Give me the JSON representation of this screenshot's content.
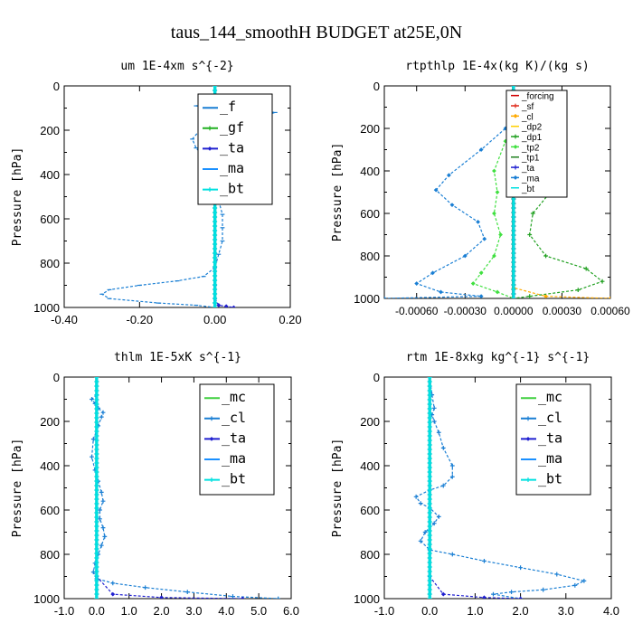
{
  "figure_title": "taus_144_smoothH  BUDGET at25E,0N",
  "chart_data": [
    {
      "type": "line",
      "title": "um  1E-4xm s^{-2}",
      "ylabel": "Pressure [hPa]",
      "xlim": [
        -0.4,
        0.2
      ],
      "ylim": [
        1000,
        0
      ],
      "xticks": [
        "-0.40",
        "-0.20",
        "0.00",
        "0.20"
      ],
      "yticks": [
        "0",
        "200",
        "400",
        "600",
        "800",
        "1000"
      ],
      "legend": [
        "_f",
        "_gf",
        "_ta",
        "_ma",
        "_bt"
      ],
      "series": [
        {
          "name": "_f",
          "color": "#1a7fd4",
          "x": [
            0.0,
            -0.03,
            -0.05,
            0.0,
            0.1,
            0.16,
            0.12,
            0.02,
            -0.04,
            -0.06,
            -0.05,
            -0.03,
            -0.02,
            0.0,
            0.01,
            0.01,
            0.02,
            0.02,
            0.02,
            0.01,
            0.0,
            -0.03,
            -0.1,
            -0.2,
            -0.28,
            -0.3,
            -0.28,
            -0.15,
            -0.05,
            0.0
          ],
          "y": [
            70,
            80,
            90,
            100,
            110,
            120,
            140,
            170,
            200,
            240,
            280,
            320,
            360,
            400,
            460,
            520,
            580,
            640,
            700,
            760,
            820,
            860,
            880,
            900,
            920,
            940,
            960,
            980,
            990,
            1000
          ]
        },
        {
          "name": "_gf",
          "color": "#20b020",
          "x": [
            0.0,
            0.0,
            0.0,
            0.0,
            0.0,
            0.0,
            0.0,
            0.0,
            0.0,
            0.0,
            0.0
          ],
          "y": [
            0,
            100,
            200,
            300,
            400,
            500,
            600,
            700,
            800,
            900,
            1000
          ]
        },
        {
          "name": "_ta",
          "color": "#2020d0",
          "x": [
            0.0,
            0.0,
            0.01,
            0.03,
            0.05
          ],
          "y": [
            900,
            960,
            990,
            995,
            1000
          ]
        },
        {
          "name": "_ma",
          "color": "#1a90ff",
          "x": [
            0.0,
            0.0
          ],
          "y": [
            0,
            1000
          ]
        },
        {
          "name": "_bt",
          "color": "#00e0e0",
          "x": [
            0.0,
            0.0,
            0.0,
            0.0,
            0.0,
            0.0
          ],
          "y": [
            0,
            200,
            400,
            600,
            800,
            1000
          ]
        }
      ]
    },
    {
      "type": "line",
      "title": "rtpthlp  1E-4x(kg K)/(kg s)",
      "ylabel": "Pressure [hPa]",
      "xlim": [
        -0.0008,
        0.0006
      ],
      "ylim": [
        1000,
        0
      ],
      "xticks": [
        "-0.00060",
        "-0.00030",
        "0.00000",
        "0.00030",
        "0.00060"
      ],
      "yticks": [
        "0",
        "200",
        "400",
        "600",
        "800",
        "1000"
      ],
      "legend": [
        "_forcing",
        "_sf",
        "_cl",
        "_dp2",
        "_dp1",
        "_tp2",
        "_tp1",
        "_ta",
        "_ma",
        "_bt"
      ],
      "series": [
        {
          "name": "_forcing",
          "color": "#d00000",
          "x": [
            0.0,
            0.0,
            0.0,
            0.0,
            0.0,
            0.0
          ],
          "y": [
            0,
            200,
            400,
            600,
            800,
            1000
          ]
        },
        {
          "name": "_sf",
          "color": "#e03020",
          "x": [
            0.0,
            0.0,
            0.0,
            0.0
          ],
          "y": [
            0,
            400,
            800,
            1000
          ]
        },
        {
          "name": "_cl",
          "color": "#ffaa00",
          "x": [
            0.0,
            0.0,
            0.0002,
            0.0006
          ],
          "y": [
            0,
            950,
            990,
            1000
          ]
        },
        {
          "name": "_dp2",
          "color": "#ffd000",
          "x": [
            0.0,
            0.0,
            0.0
          ],
          "y": [
            0,
            500,
            1000
          ]
        },
        {
          "name": "_dp1",
          "color": "#20a020",
          "x": [
            0.0,
            5e-05,
            0.00018,
            0.00028,
            0.00025,
            0.00012,
            0.0001,
            0.0002,
            0.00045,
            0.00055,
            0.0004,
            0.0001,
            0.0
          ],
          "y": [
            180,
            220,
            300,
            400,
            480,
            600,
            700,
            800,
            860,
            920,
            960,
            990,
            1000
          ]
        },
        {
          "name": "_tp2",
          "color": "#40e040",
          "x": [
            0.0,
            -5e-05,
            -0.00012,
            -0.0001,
            -0.00012,
            -8e-05,
            -0.00012,
            -0.0002,
            -0.00025,
            -0.0001,
            0.0
          ],
          "y": [
            200,
            260,
            400,
            500,
            600,
            700,
            800,
            880,
            930,
            970,
            1000
          ]
        },
        {
          "name": "_tp1",
          "color": "#208020",
          "x": [
            0.0,
            0.0,
            0.0
          ],
          "y": [
            0,
            500,
            1000
          ]
        },
        {
          "name": "_ta",
          "color": "#2020d0",
          "x": [
            0.0,
            0.0,
            0.0
          ],
          "y": [
            0,
            500,
            1000
          ]
        },
        {
          "name": "_ma",
          "color": "#1a7fd4",
          "x": [
            0.0,
            -5e-05,
            -0.0002,
            -0.0004,
            -0.00048,
            -0.00038,
            -0.00022,
            -0.00018,
            -0.0003,
            -0.0005,
            -0.0006,
            -0.00045,
            -0.0002,
            -0.0008
          ],
          "y": [
            150,
            200,
            300,
            420,
            490,
            560,
            640,
            720,
            800,
            880,
            930,
            970,
            990,
            1000
          ]
        },
        {
          "name": "_bt",
          "color": "#00e0e0",
          "x": [
            0.0,
            0.0,
            0.0
          ],
          "y": [
            0,
            500,
            1000
          ]
        }
      ]
    },
    {
      "type": "line",
      "title": "thlm  1E-5xK s^{-1}",
      "ylabel": "Pressure [hPa]",
      "xlim": [
        -1.0,
        6.0
      ],
      "ylim": [
        1000,
        0
      ],
      "xticks": [
        "-1.0",
        "0.0",
        "1.0",
        "2.0",
        "3.0",
        "4.0",
        "5.0",
        "6.0"
      ],
      "yticks": [
        "0",
        "200",
        "400",
        "600",
        "800",
        "1000"
      ],
      "legend": [
        "_mc",
        "_cl",
        "_ta",
        "_ma",
        "_bt"
      ],
      "series": [
        {
          "name": "_mc",
          "color": "#40d040",
          "x": [
            0.0,
            0.0,
            0.0,
            0.0,
            0.0,
            0.0
          ],
          "y": [
            0,
            200,
            400,
            600,
            800,
            1000
          ]
        },
        {
          "name": "_cl",
          "color": "#1a7fd4",
          "x": [
            0.0,
            -0.15,
            -0.05,
            0.05,
            0.2,
            0.15,
            0.05,
            -0.1,
            -0.15,
            -0.05,
            0.05,
            0.15,
            0.2,
            0.1,
            0.1,
            0.2,
            0.25,
            0.15,
            0.05,
            -0.05,
            -0.1,
            0.0,
            0.5,
            1.5,
            2.8,
            4.2,
            5.6
          ],
          "y": [
            80,
            100,
            120,
            140,
            160,
            180,
            220,
            280,
            360,
            420,
            470,
            520,
            560,
            600,
            640,
            680,
            720,
            760,
            800,
            840,
            880,
            910,
            930,
            950,
            970,
            990,
            1000
          ]
        },
        {
          "name": "_ta",
          "color": "#2020d0",
          "x": [
            0.0,
            0.0,
            0.5,
            2.0,
            4.5
          ],
          "y": [
            0,
            900,
            980,
            995,
            1000
          ]
        },
        {
          "name": "_ma",
          "color": "#1a90ff",
          "x": [
            0.0,
            0.0
          ],
          "y": [
            0,
            1000
          ]
        },
        {
          "name": "_bt",
          "color": "#00e0e0",
          "x": [
            0.0,
            0.0,
            0.0,
            0.0
          ],
          "y": [
            0,
            400,
            800,
            1000
          ]
        }
      ]
    },
    {
      "type": "line",
      "title": "rtm  1E-8xkg kg^{-1} s^{-1}",
      "ylabel": "Pressure [hPa]",
      "xlim": [
        -1.0,
        4.0
      ],
      "ylim": [
        1000,
        0
      ],
      "xticks": [
        "-1.0",
        "0.0",
        "1.0",
        "2.0",
        "3.0",
        "4.0"
      ],
      "yticks": [
        "0",
        "200",
        "400",
        "600",
        "800",
        "1000"
      ],
      "legend": [
        "_mc",
        "_cl",
        "_ta",
        "_ma",
        "_bt"
      ],
      "series": [
        {
          "name": "_mc",
          "color": "#40d040",
          "x": [
            0.0,
            0.0,
            0.0,
            0.0,
            0.0,
            0.0
          ],
          "y": [
            0,
            200,
            400,
            600,
            800,
            1000
          ]
        },
        {
          "name": "_cl",
          "color": "#1a7fd4",
          "x": [
            0.0,
            0.05,
            0.1,
            0.05,
            0.1,
            0.2,
            0.3,
            0.5,
            0.5,
            0.3,
            0.0,
            -0.3,
            -0.2,
            0.0,
            0.2,
            0.1,
            -0.1,
            -0.2,
            0.0,
            0.5,
            1.2,
            2.0,
            2.8,
            3.4,
            3.2,
            2.5,
            1.8,
            1.4,
            2.0
          ],
          "y": [
            0,
            80,
            140,
            170,
            200,
            250,
            320,
            400,
            450,
            490,
            510,
            540,
            570,
            590,
            630,
            660,
            700,
            740,
            780,
            800,
            830,
            860,
            890,
            920,
            940,
            960,
            970,
            980,
            1000
          ]
        },
        {
          "name": "_ta",
          "color": "#2020d0",
          "x": [
            0.0,
            0.0,
            0.3,
            1.2,
            2.0
          ],
          "y": [
            0,
            900,
            980,
            995,
            1000
          ]
        },
        {
          "name": "_ma",
          "color": "#1a90ff",
          "x": [
            0.0,
            0.0
          ],
          "y": [
            0,
            1000
          ]
        },
        {
          "name": "_bt",
          "color": "#00e0e0",
          "x": [
            0.0,
            0.0,
            0.0,
            0.0
          ],
          "y": [
            0,
            400,
            800,
            1000
          ]
        }
      ]
    }
  ]
}
